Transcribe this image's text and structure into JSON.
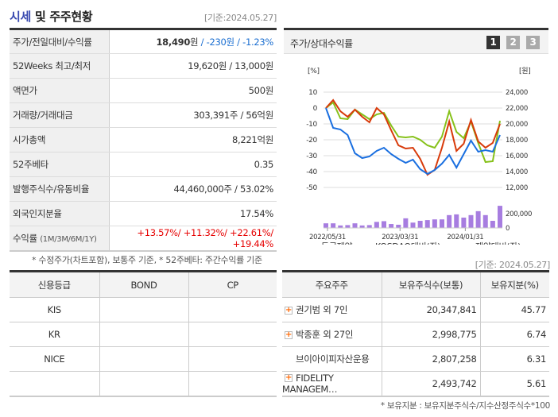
{
  "header": {
    "title_a": "시세",
    "title_b": " 및 주주현황",
    "date": "[기준:2024.05.27]"
  },
  "quote": {
    "rows": [
      {
        "label": "주가/전일대비/수익률",
        "price": "18,490",
        "won": "원",
        "sep": " / ",
        "change": "-230원",
        "sep2": " / ",
        "pct": "-1.23%"
      },
      {
        "label": "52Weeks 최고/최저",
        "value": "19,620원 / 13,000원"
      },
      {
        "label": "액면가",
        "value": "500원"
      },
      {
        "label": "거래량/거래대금",
        "value": "303,391주 / 56억원"
      },
      {
        "label": "시가총액",
        "value": "8,221억원"
      },
      {
        "label": "52주베타",
        "value": "0.35"
      },
      {
        "label": "발행주식수/유동비율",
        "value": "44,460,000주 / 53.02%"
      },
      {
        "label": "외국인지분율",
        "value": "17.54%"
      },
      {
        "label": "수익률",
        "sub": "(1M/3M/6M/1Y)",
        "value": "+13.57%/ +11.32%/ +22.61%/ +19.44%"
      }
    ],
    "note": "* 수정주가(차트포함), 보통주 기준, * 52주베타: 주간수익률 기준"
  },
  "chart_panel": {
    "title": "주가/상대수익률",
    "pages": [
      "1",
      "2",
      "3"
    ],
    "active_page": "1"
  },
  "chart_data": {
    "type": "line",
    "left_unit": "[%]",
    "right_unit": "[원]",
    "left_ticks": [
      10,
      0,
      -10,
      -20,
      -30,
      -40,
      -50
    ],
    "right_ticks": [
      "24,000",
      "22,000",
      "20,000",
      "18,000",
      "16,000",
      "14,000",
      "12,000"
    ],
    "volume_ticks": [
      "200,000",
      "0"
    ],
    "x_ticks": [
      "2022/05/31",
      "2023/03/31",
      "2024/01/31"
    ],
    "ylim": [
      -50,
      10
    ],
    "series": [
      {
        "name": "동국제약",
        "color": "#1a6fe0",
        "values": [
          0,
          -12.5,
          -13.5,
          -17,
          -28.5,
          -31.5,
          -30.5,
          -27,
          -25,
          -29,
          -32,
          -34.5,
          -32.5,
          -38.5,
          -41.5,
          -39,
          -35,
          -29.5,
          -37.5,
          -29,
          -20.5,
          -27.5,
          -26.5,
          -27.5,
          -17
        ]
      },
      {
        "name": "KOSDAQ대비(좌)",
        "color": "#d83a0a",
        "values": [
          0,
          5,
          -2,
          -5.5,
          -1,
          -5.5,
          -9,
          0,
          -4,
          -14,
          -23.5,
          -25.5,
          -25,
          -32,
          -42,
          -39,
          -25,
          -8.5,
          -27,
          -22.5,
          -7.5,
          -21,
          -25,
          -22,
          -10
        ]
      },
      {
        "name": "제약대비(좌)",
        "color": "#86c11a",
        "values": [
          0,
          3.5,
          -6.5,
          -7,
          -1,
          -4,
          -7,
          -4,
          -3,
          -11,
          -18,
          -18.5,
          -18,
          -20,
          -23.5,
          -25,
          -18,
          -2,
          -15,
          -19,
          -8.5,
          -22,
          -34,
          -33.5,
          -8
        ]
      }
    ],
    "volume": {
      "name": "거래량",
      "color": "#a77de0",
      "values": [
        65000,
        65000,
        35000,
        40000,
        65000,
        35000,
        40000,
        85000,
        95000,
        55000,
        45000,
        135000,
        75000,
        100000,
        110000,
        120000,
        120000,
        180000,
        190000,
        145000,
        180000,
        235000,
        180000,
        100000,
        310000
      ]
    }
  },
  "credit": {
    "headers": [
      "신용등급",
      "BOND",
      "CP"
    ],
    "rows": [
      [
        "KIS",
        "",
        ""
      ],
      [
        "KR",
        "",
        ""
      ],
      [
        "NICE",
        "",
        ""
      ],
      [
        "",
        "",
        ""
      ]
    ]
  },
  "holders": {
    "date": "[기준: 2024.05.27]",
    "headers": [
      "주요주주",
      "보유주식수(보통)",
      "보유지분(%)"
    ],
    "rows": [
      {
        "name": "권기범 외 7인",
        "shares": "20,347,841",
        "pct": "45.77",
        "expand": true
      },
      {
        "name": "박종훈 외 27인",
        "shares": "2,998,775",
        "pct": "6.74",
        "expand": true
      },
      {
        "name": "브이아이피자산운용",
        "shares": "2,807,258",
        "pct": "6.31",
        "expand": false
      },
      {
        "name": "FIDELITY MANAGEM…",
        "shares": "2,493,742",
        "pct": "5.61",
        "expand": true
      }
    ],
    "note": "* 보유지분 : 보유지분주식수/지수산정주식수*100"
  }
}
